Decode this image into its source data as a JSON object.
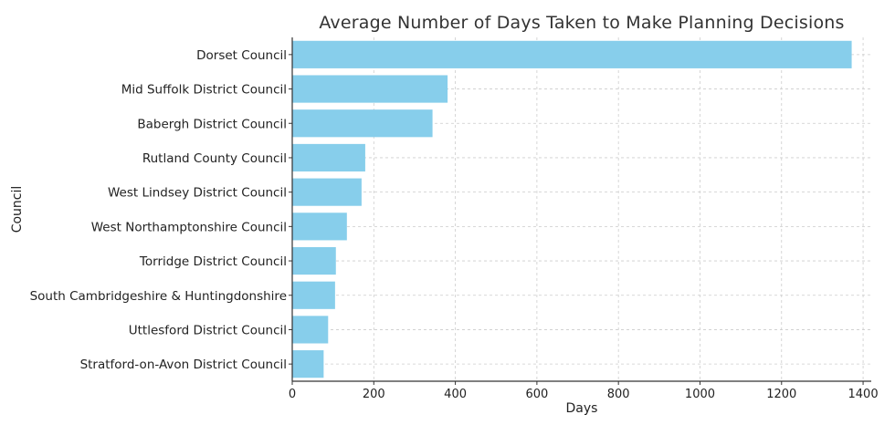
{
  "chart_data": {
    "type": "bar",
    "orientation": "horizontal",
    "title": "Average Number of Days Taken to Make Planning Decisions",
    "xlabel": "Days",
    "ylabel": "Council",
    "xlim": [
      0,
      1420
    ],
    "xticks": [
      0,
      200,
      400,
      600,
      800,
      1000,
      1200,
      1400
    ],
    "grid": true,
    "categories": [
      "Dorset Council",
      "Mid Suffolk District Council",
      "Babergh District Council",
      "Rutland County Council",
      "West Lindsey District Council",
      "West Northamptonshire Council",
      "Torridge District Council",
      "South Cambridgeshire & Huntingdonshire",
      "Uttlesford District Council",
      "Stratford-on-Avon District Council"
    ],
    "values": [
      1372,
      381,
      344,
      179,
      170,
      134,
      107,
      105,
      88,
      77
    ],
    "colors": {
      "bar": "#87CEEB",
      "grid": "#cccccc",
      "axis": "#333333"
    }
  }
}
